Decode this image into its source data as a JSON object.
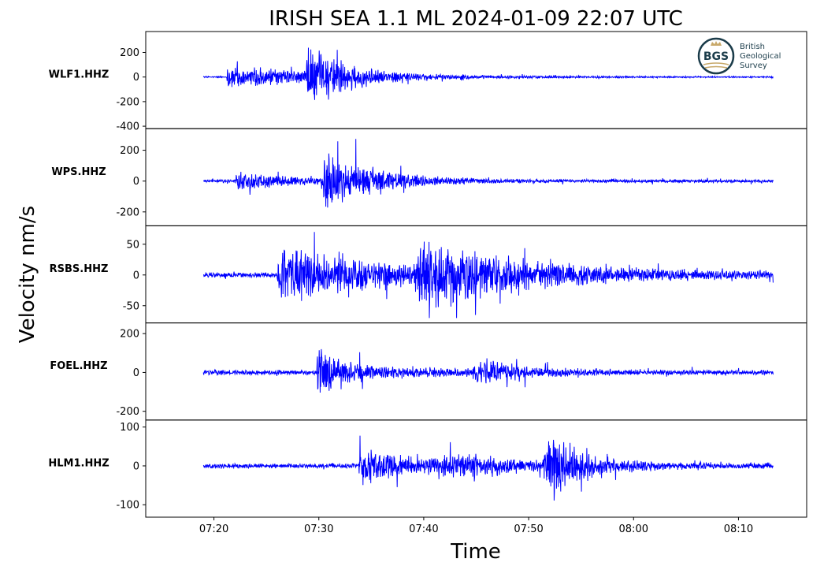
{
  "chart_data": {
    "type": "line",
    "title": "IRISH SEA 1.1 ML   2024-01-09 22:07 UTC",
    "xlabel": "Time",
    "ylabel": "Velocity nm/s",
    "x_range_minutes": [
      433.5,
      496.5
    ],
    "x_ticks": [
      {
        "value": 440,
        "label": "07:20"
      },
      {
        "value": 450,
        "label": "07:30"
      },
      {
        "value": 460,
        "label": "07:40"
      },
      {
        "value": 470,
        "label": "07:50"
      },
      {
        "value": 480,
        "label": "08:00"
      },
      {
        "value": 490,
        "label": "08:10"
      }
    ],
    "line_color": "#0000ff",
    "grid": false,
    "series": [
      {
        "name": "WLF1.HHZ",
        "ylim": [
          -420,
          370
        ],
        "yticks": [
          {
            "value": 200,
            "label": "200"
          },
          {
            "value": 0,
            "label": "0"
          },
          {
            "value": -200,
            "label": "-200"
          },
          {
            "value": -400,
            "label": "-400"
          }
        ],
        "noise": 6,
        "events": [
          {
            "t": 441.2,
            "amp": 110,
            "rise": 0.1,
            "decay": 10
          },
          {
            "t": 448.5,
            "amp": 260,
            "rise": 0.6,
            "decay": 3.5
          }
        ]
      },
      {
        "name": "WPS.HHZ",
        "ylim": [
          -290,
          340
        ],
        "yticks": [
          {
            "value": 200,
            "label": "200"
          },
          {
            "value": 0,
            "label": "0"
          },
          {
            "value": -200,
            "label": "-200"
          }
        ],
        "noise": 12,
        "events": [
          {
            "t": 442.0,
            "amp": 60,
            "rise": 0.3,
            "decay": 6
          },
          {
            "t": 450.2,
            "amp": 230,
            "rise": 0.4,
            "decay": 4.5
          }
        ]
      },
      {
        "name": "RSBS.HHZ",
        "ylim": [
          -78,
          80
        ],
        "yticks": [
          {
            "value": 50,
            "label": "50"
          },
          {
            "value": 0,
            "label": "0"
          },
          {
            "value": -50,
            "label": "-50"
          }
        ],
        "noise": 5,
        "events": [
          {
            "t": 446.0,
            "amp": 50,
            "rise": 0.2,
            "decay": 12
          },
          {
            "t": 459.0,
            "amp": 55,
            "rise": 1.0,
            "decay": 9
          }
        ]
      },
      {
        "name": "FOEL.HHZ",
        "ylim": [
          -245,
          255
        ],
        "yticks": [
          {
            "value": 200,
            "label": "200"
          },
          {
            "value": 0,
            "label": "0"
          },
          {
            "value": -200,
            "label": "-200"
          }
        ],
        "noise": 14,
        "events": [
          {
            "t": 449.8,
            "amp": 210,
            "rise": 0.05,
            "decay": 0.9
          },
          {
            "t": 450.4,
            "amp": 55,
            "rise": 0.2,
            "decay": 8
          },
          {
            "t": 464.5,
            "amp": 75,
            "rise": 0.8,
            "decay": 3.5
          }
        ]
      },
      {
        "name": "HLM1.HHZ",
        "ylim": [
          -132,
          118
        ],
        "yticks": [
          {
            "value": 100,
            "label": "100"
          },
          {
            "value": 0,
            "label": "0"
          },
          {
            "value": -100,
            "label": "-100"
          }
        ],
        "noise": 7,
        "events": [
          {
            "t": 453.8,
            "amp": 55,
            "rise": 0.1,
            "decay": 5
          },
          {
            "t": 460.0,
            "amp": 25,
            "rise": 3.0,
            "decay": 10
          },
          {
            "t": 471.3,
            "amp": 95,
            "rise": 0.7,
            "decay": 3
          }
        ]
      }
    ],
    "signal_start": 439.0,
    "signal_end": 493.3,
    "samples": 1900
  },
  "logo": {
    "initials": "BGS",
    "line1": "British",
    "line2": "Geological",
    "line3": "Survey",
    "primary_color": "#1b3c4a",
    "accent_color": "#c8a96a"
  }
}
